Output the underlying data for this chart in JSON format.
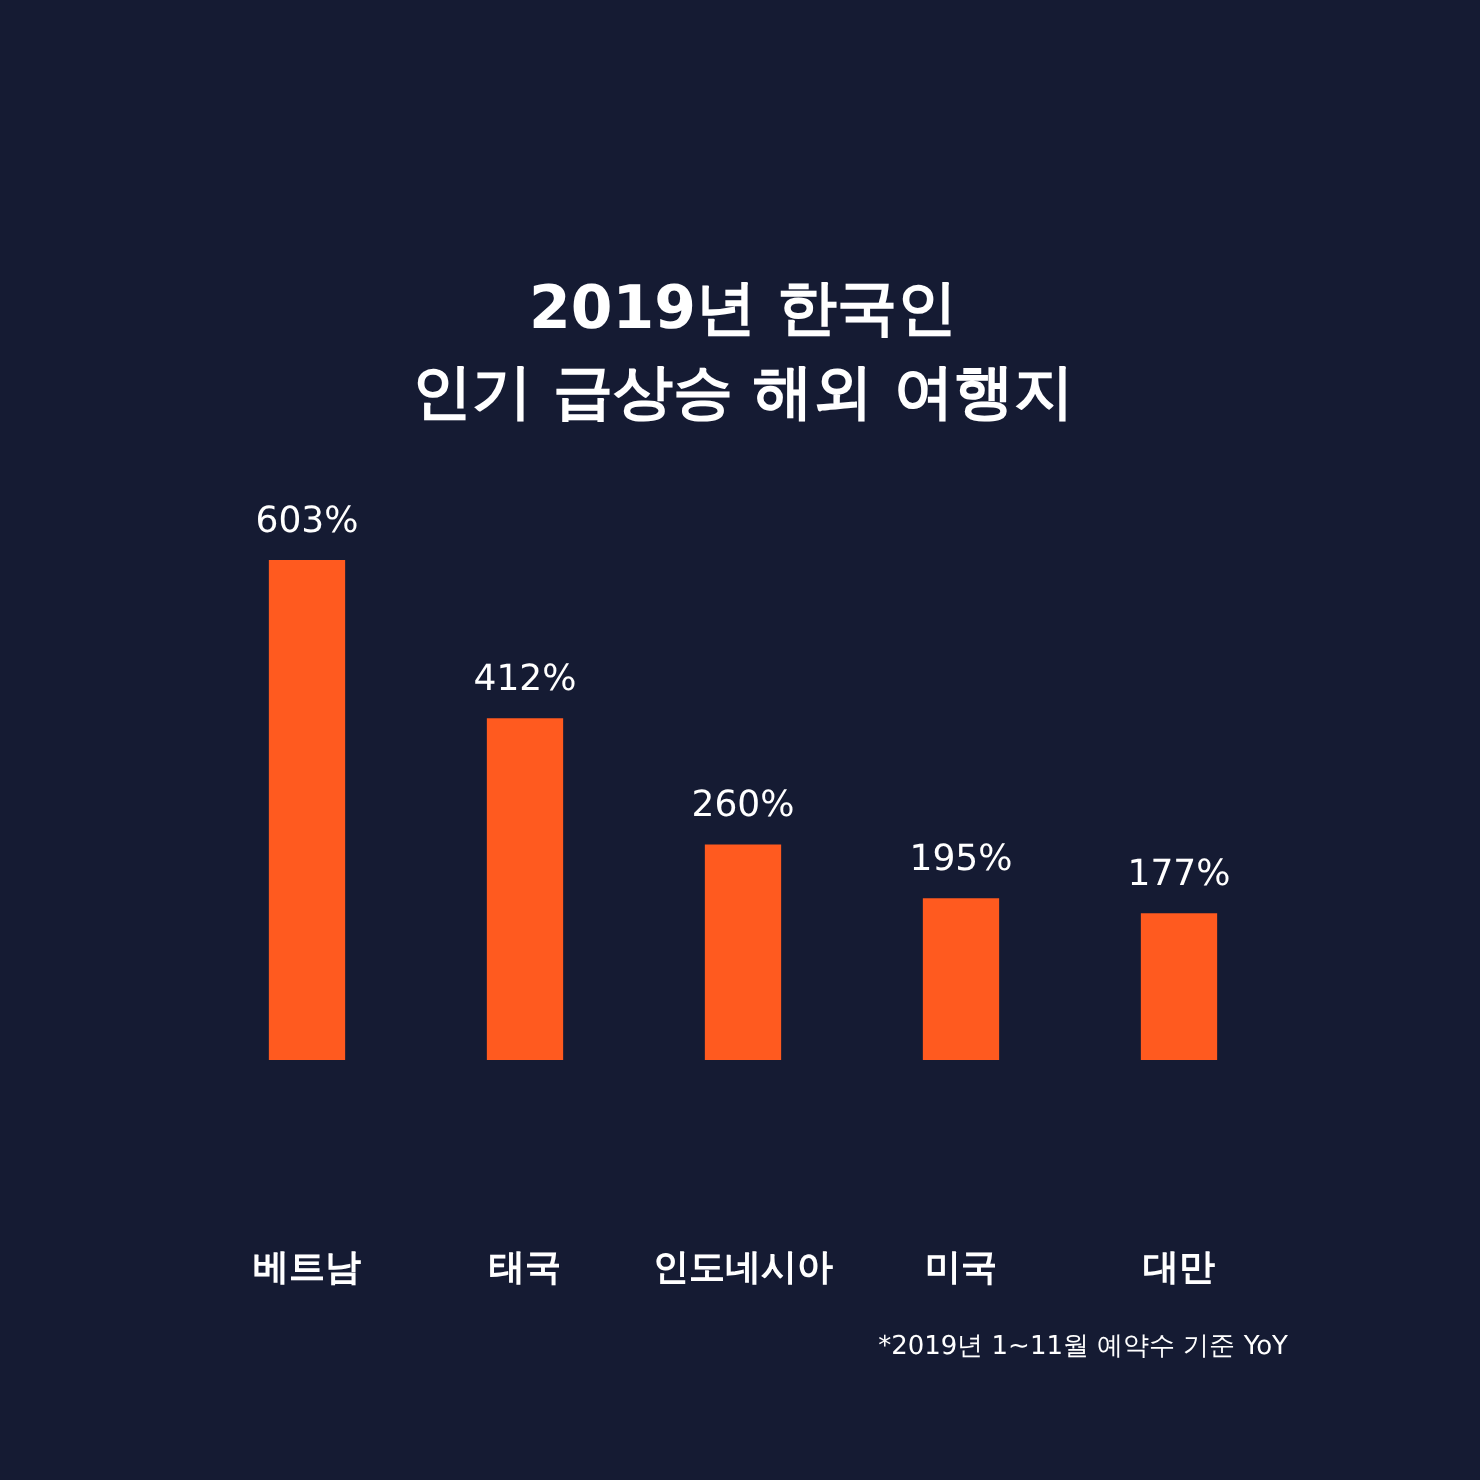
{
  "chart_data": {
    "type": "bar",
    "title": "2019년 한국인\n인기 급상승 해외 여행지",
    "categories": [
      "베트남",
      "태국",
      "인도네시아",
      "미국",
      "대만"
    ],
    "values": [
      603,
      412,
      260,
      195,
      177
    ],
    "value_labels": [
      "603%",
      "412%",
      "260%",
      "195%",
      "177%"
    ],
    "color": "#ff5a1f",
    "annotations": [
      "*2019년 1~11월 예약수 기준 YoY"
    ]
  }
}
